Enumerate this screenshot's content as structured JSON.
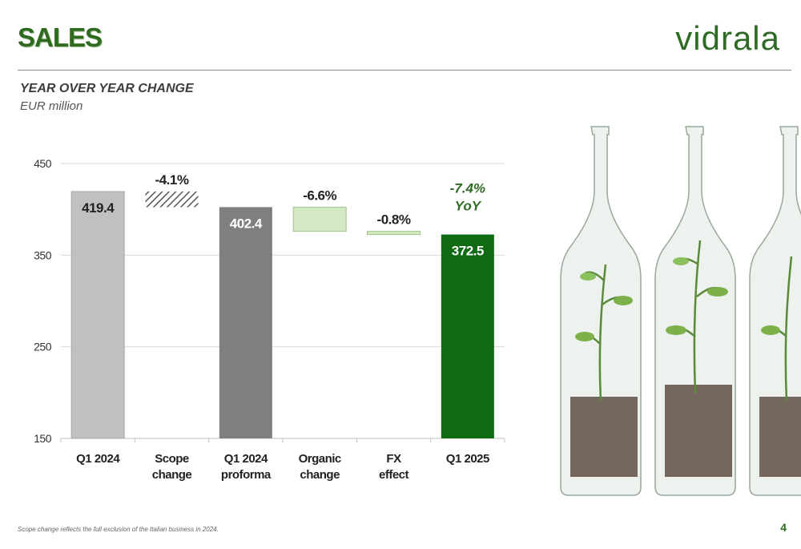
{
  "header": {
    "title": "SALES",
    "logo": "vidrala"
  },
  "subtitle": "YEAR OVER YEAR CHANGE",
  "unit": "EUR million",
  "footnote": "Scope change reflects the full exclusion of the Italian business in 2024.",
  "page_number": "4",
  "colors": {
    "brand": "#2f6b25",
    "bar_start": "#c0c0c0",
    "bar_mid": "#7f7f7f",
    "bar_end": "#0e6b12",
    "delta_fill": "#d4e8c4"
  },
  "chart_data": {
    "type": "bar",
    "subtype": "waterfall",
    "categories": [
      "Q1 2024",
      "Scope change",
      "Q1 2024 proforma",
      "Organic change",
      "FX effect",
      "Q1 2025"
    ],
    "category_lines": [
      [
        "Q1 2024"
      ],
      [
        "Scope",
        "change"
      ],
      [
        "Q1 2024",
        "proforma"
      ],
      [
        "Organic",
        "change"
      ],
      [
        "FX",
        "effect"
      ],
      [
        "Q1 2025"
      ]
    ],
    "bars": [
      {
        "kind": "total",
        "value": 419.4,
        "label": "419.4",
        "style": "light-grey"
      },
      {
        "kind": "delta",
        "from": 419.4,
        "to": 402.4,
        "label": "-4.1%",
        "style": "hatched"
      },
      {
        "kind": "total",
        "value": 402.4,
        "label": "402.4",
        "style": "dark-grey"
      },
      {
        "kind": "delta",
        "from": 402.4,
        "to": 376.0,
        "label": "-6.6%",
        "style": "light-green"
      },
      {
        "kind": "delta",
        "from": 376.0,
        "to": 372.5,
        "label": "-0.8%",
        "style": "light-green"
      },
      {
        "kind": "total",
        "value": 372.5,
        "label": "372.5",
        "style": "dark-green"
      }
    ],
    "yoy_label": [
      "-7.4%",
      "YoY"
    ],
    "yticks": [
      150,
      250,
      350,
      450
    ],
    "ylim": [
      150,
      450
    ],
    "grid": true
  }
}
